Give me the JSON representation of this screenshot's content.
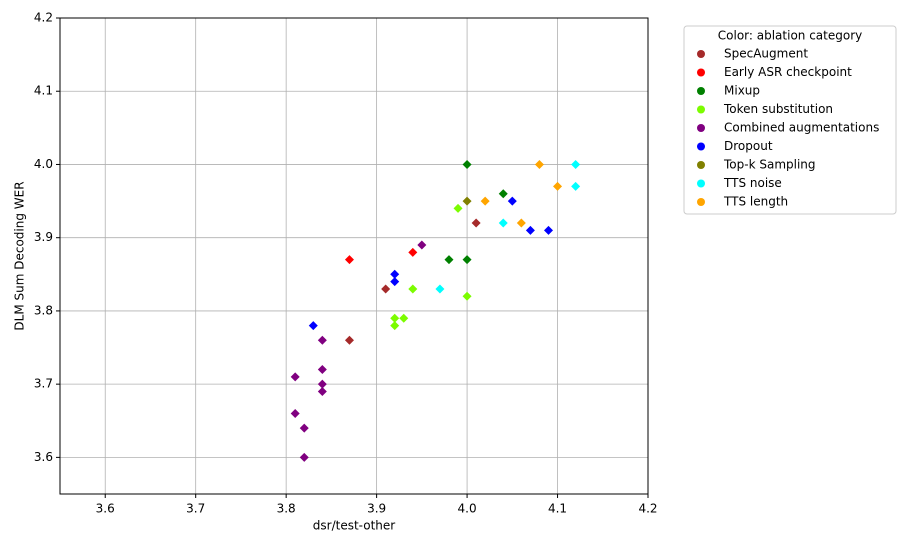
{
  "chart_data": {
    "type": "scatter",
    "x_label": "dsr/test-other",
    "y_label": "DLM Sum Decoding WER",
    "legend_title": "Color: ablation category",
    "legend_position": "outside right",
    "grid": true,
    "marker": "diamond",
    "xlim": [
      3.55,
      4.2
    ],
    "ylim": [
      3.55,
      4.2
    ],
    "xticks": [
      3.6,
      3.7,
      3.8,
      3.9,
      {
        "value": 4,
        "label": "4.0"
      },
      4.1,
      4.2
    ],
    "yticks": [
      3.6,
      3.7,
      3.8,
      3.9,
      {
        "value": 4,
        "label": "4.0"
      },
      4.1,
      4.2
    ],
    "series": [
      {
        "name": "SpecAugment",
        "color": "#a52a2a",
        "x": [
          3.91,
          3.87,
          4.01
        ],
        "values": [
          3.83,
          3.76,
          3.92
        ]
      },
      {
        "name": "Early ASR checkpoint",
        "color": "#ff0000",
        "x": [
          3.87,
          3.94
        ],
        "values": [
          3.87,
          3.88
        ]
      },
      {
        "name": "Mixup",
        "color": "#008000",
        "x": [
          4.0,
          4.04,
          3.98,
          4.0
        ],
        "values": [
          4.0,
          3.96,
          3.87,
          3.87
        ]
      },
      {
        "name": "Token substitution",
        "color": "#7cfc00",
        "x": [
          3.99,
          3.94,
          4.0,
          3.92,
          3.93,
          3.92
        ],
        "values": [
          3.94,
          3.83,
          3.82,
          3.79,
          3.79,
          3.78
        ]
      },
      {
        "name": "Combined augmentations",
        "color": "#800080",
        "x": [
          3.95,
          3.84,
          3.84,
          3.81,
          3.84,
          3.84,
          3.81,
          3.82,
          3.82
        ],
        "values": [
          3.89,
          3.76,
          3.72,
          3.71,
          3.7,
          3.69,
          3.66,
          3.64,
          3.6
        ]
      },
      {
        "name": "Dropout",
        "color": "#0000ff",
        "x": [
          3.92,
          3.92,
          3.83,
          4.05,
          4.07,
          4.09
        ],
        "values": [
          3.85,
          3.84,
          3.78,
          3.95,
          3.91,
          3.91
        ]
      },
      {
        "name": "Top-k Sampling",
        "color": "#808000",
        "x": [
          4.0
        ],
        "values": [
          3.95
        ]
      },
      {
        "name": "TTS noise",
        "color": "#00ffff",
        "x": [
          4.12,
          4.12,
          4.04,
          3.97
        ],
        "values": [
          4.0,
          3.97,
          3.92,
          3.83
        ]
      },
      {
        "name": "TTS length",
        "color": "#ffa500",
        "x": [
          4.08,
          4.1,
          4.02,
          4.06
        ],
        "values": [
          4.0,
          3.97,
          3.95,
          3.92
        ]
      }
    ]
  }
}
